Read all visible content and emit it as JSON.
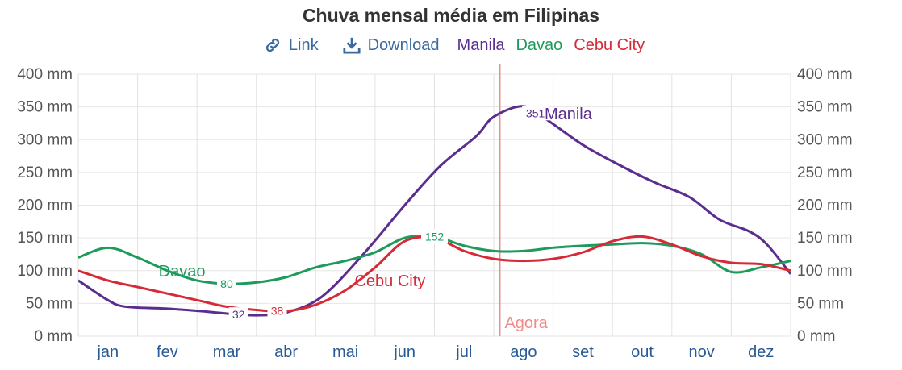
{
  "title": "Chuva mensal média em Filipinas",
  "toolbar": {
    "link_label": "Link",
    "download_label": "Download"
  },
  "legend": [
    {
      "name": "Manila",
      "color": "#5b2d8e"
    },
    {
      "name": "Davao",
      "color": "#1e9a5c"
    },
    {
      "name": "Cebu City",
      "color": "#d62a36"
    }
  ],
  "chart_data": {
    "type": "line",
    "title": "Chuva mensal média em Filipinas",
    "categories": [
      "jan",
      "fev",
      "mar",
      "abr",
      "mai",
      "jun",
      "jul",
      "ago",
      "set",
      "out",
      "nov",
      "dez"
    ],
    "y_ticks": [
      "0 mm",
      "50 mm",
      "100 mm",
      "150 mm",
      "200 mm",
      "250 mm",
      "300 mm",
      "350 mm",
      "400 mm"
    ],
    "ylim": [
      0,
      400
    ],
    "grid": true,
    "series": [
      {
        "name": "Manila",
        "color": "#5b2d8e",
        "x": [
          -0.5,
          0,
          0.3,
          1,
          1.6,
          2.2,
          2.55,
          3,
          3.6,
          4.3,
          5,
          5.6,
          6.2,
          6.5,
          7,
          7.4,
          8,
          8.6,
          9.2,
          9.8,
          10.3,
          10.8,
          11.1,
          11.5
        ],
        "values": [
          85,
          55,
          45,
          42,
          38,
          33,
          32,
          36,
          60,
          125,
          200,
          260,
          305,
          335,
          351,
          330,
          292,
          262,
          235,
          212,
          178,
          160,
          140,
          95
        ],
        "labels": [
          {
            "x": 2.2,
            "text": "32"
          },
          {
            "x": 7.2,
            "text": "351"
          }
        ],
        "end_label": {
          "text": "Manila",
          "x": 7.8,
          "y": 340
        }
      },
      {
        "name": "Davao",
        "color": "#1e9a5c",
        "x": [
          -0.5,
          0,
          0.5,
          1,
          1.5,
          2,
          2.5,
          3,
          3.5,
          4,
          4.5,
          5,
          5.5,
          6,
          6.5,
          7,
          7.5,
          8,
          8.5,
          9,
          9.5,
          10,
          10.5,
          11,
          11.5
        ],
        "values": [
          120,
          135,
          120,
          100,
          85,
          80,
          82,
          90,
          105,
          115,
          128,
          150,
          152,
          138,
          130,
          130,
          135,
          138,
          140,
          142,
          138,
          125,
          98,
          105,
          115
        ],
        "labels": [
          {
            "x": 2,
            "text": "80"
          },
          {
            "x": 5.5,
            "text": "152"
          }
        ],
        "end_label": {
          "text": "Davao",
          "x": 1.3,
          "y": 100
        }
      },
      {
        "name": "Cebu City",
        "color": "#d62a36",
        "x": [
          -0.5,
          0,
          0.5,
          1,
          1.5,
          2,
          2.5,
          3,
          3.5,
          4,
          4.5,
          5,
          5.5,
          6,
          6.5,
          7,
          7.5,
          8,
          8.5,
          9,
          9.5,
          10,
          10.5,
          11,
          11.5
        ],
        "values": [
          100,
          85,
          75,
          65,
          55,
          45,
          40,
          38,
          48,
          70,
          105,
          145,
          150,
          130,
          118,
          115,
          118,
          128,
          145,
          152,
          140,
          122,
          112,
          110,
          100
        ],
        "labels": [
          {
            "x": 2.85,
            "text": "38"
          }
        ],
        "end_label": {
          "text": "Cebu City",
          "x": 4.6,
          "y": 85
        }
      }
    ],
    "marker": {
      "label": "Agora",
      "x": 6.6,
      "color": "#f08a8a"
    }
  }
}
